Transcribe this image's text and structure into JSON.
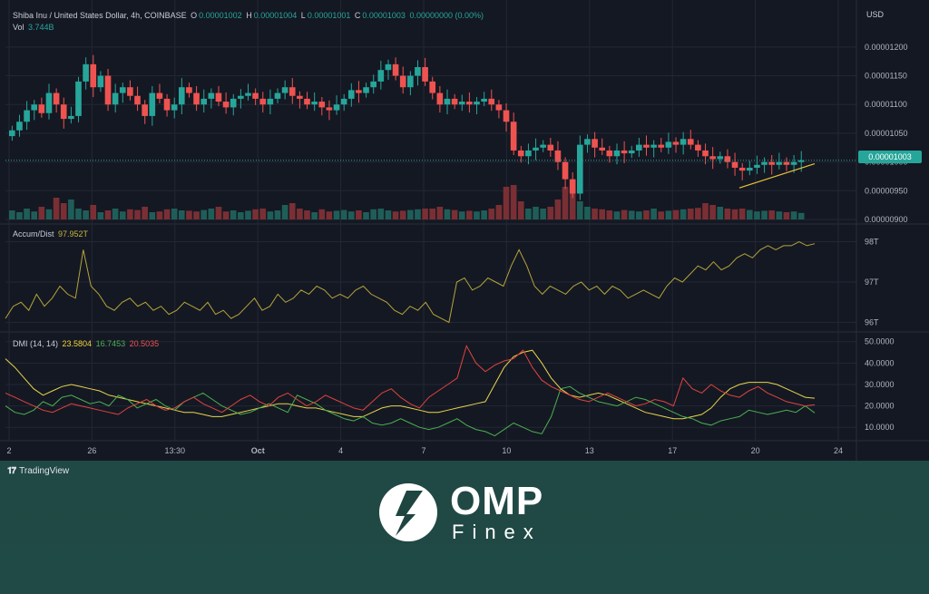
{
  "header": {
    "symbol": "Shiba Inu / United States Dollar, 4h, COINBASE",
    "o_label": "O",
    "o_value": "0.00001002",
    "h_label": "H",
    "h_value": "0.00001004",
    "l_label": "L",
    "l_value": "0.00001001",
    "c_label": "C",
    "c_value": "0.00001003",
    "change": "0.00000000 (0.00%)",
    "vol_label": "Vol",
    "vol_value": "3.744B",
    "currency": "USD",
    "last_price": "0.00001003"
  },
  "indicators": {
    "ad_label": "Accum/Dist",
    "ad_value": "97.952T",
    "dmi_label": "DMI (14, 14)",
    "dmi_adx": "23.5804",
    "dmi_plus": "16.7453",
    "dmi_minus": "20.5035"
  },
  "colors": {
    "up": "#26a69a",
    "down": "#ef5350",
    "ad_line": "#b5a43a",
    "adx": "#e8d54a",
    "plus_di": "#4caf50",
    "minus_di": "#e0443e",
    "trendline": "#e8c33a",
    "background": "#141823",
    "grid": "#232734"
  },
  "branding": {
    "tradingview": "TradingView",
    "logo_title": "OMP",
    "logo_sub": "Finex",
    "logo_icon": "omp-finex-logo-icon",
    "tv_icon": "tradingview-logo-icon"
  },
  "chart_data": [
    {
      "type": "candlestick",
      "title": "Shiba Inu / United States Dollar, 4h, COINBASE",
      "ylabel": "USD",
      "ylim": [
        9e-06,
        1.225e-05
      ],
      "yticks": [
        "0.00001200",
        "0.00001150",
        "0.00001100",
        "0.00001050",
        "0.00001000",
        "0.00000950",
        "0.00000900"
      ],
      "xticks": [
        "2",
        "26",
        "13:30",
        "Oct",
        "4",
        "7",
        "10",
        "13",
        "17",
        "20",
        "24"
      ],
      "close_series": [
        1.055,
        1.07,
        1.09,
        1.1,
        1.085,
        1.12,
        1.1,
        1.075,
        1.08,
        1.14,
        1.17,
        1.13,
        1.15,
        1.1,
        1.12,
        1.13,
        1.115,
        1.1,
        1.08,
        1.12,
        1.11,
        1.09,
        1.1,
        1.13,
        1.12,
        1.1,
        1.11,
        1.12,
        1.105,
        1.095,
        1.11,
        1.115,
        1.12,
        1.11,
        1.1,
        1.11,
        1.12,
        1.13,
        1.115,
        1.11,
        1.1,
        1.105,
        1.095,
        1.09,
        1.1,
        1.11,
        1.125,
        1.12,
        1.13,
        1.14,
        1.16,
        1.17,
        1.15,
        1.13,
        1.15,
        1.165,
        1.14,
        1.12,
        1.1,
        1.11,
        1.1,
        1.105,
        1.1,
        1.105,
        1.11,
        1.1,
        1.09,
        1.07,
        1.02,
        1.01,
        1.02,
        1.025,
        1.03,
        1.02,
        1.0,
        0.97,
        0.945,
        1.03,
        1.04,
        1.025,
        1.02,
        1.01,
        1.02,
        1.015,
        1.02,
        1.03,
        1.025,
        1.03,
        1.025,
        1.035,
        1.03,
        1.04,
        1.03,
        1.02,
        1.01,
        1.005,
        1.01,
        1.0,
        0.99,
        0.985,
        0.99,
        0.995,
        1.0,
        0.995,
        1.0,
        0.995,
        1.0,
        1.003
      ],
      "volume_series": [
        0.25,
        0.2,
        0.3,
        0.22,
        0.35,
        0.28,
        0.6,
        0.45,
        0.55,
        0.3,
        0.25,
        0.4,
        0.2,
        0.25,
        0.3,
        0.22,
        0.28,
        0.26,
        0.35,
        0.2,
        0.22,
        0.28,
        0.3,
        0.25,
        0.24,
        0.22,
        0.26,
        0.3,
        0.35,
        0.22,
        0.25,
        0.2,
        0.24,
        0.28,
        0.3,
        0.22,
        0.25,
        0.4,
        0.45,
        0.3,
        0.25,
        0.2,
        0.28,
        0.22,
        0.24,
        0.26,
        0.22,
        0.25,
        0.2,
        0.28,
        0.3,
        0.25,
        0.22,
        0.24,
        0.26,
        0.28,
        0.3,
        0.3,
        0.35,
        0.28,
        0.26,
        0.22,
        0.24,
        0.22,
        0.25,
        0.3,
        0.4,
        0.9,
        0.95,
        0.5,
        0.3,
        0.35,
        0.3,
        0.35,
        0.55,
        0.9,
        0.8,
        0.5,
        0.35,
        0.3,
        0.28,
        0.25,
        0.22,
        0.26,
        0.24,
        0.22,
        0.25,
        0.3,
        0.22,
        0.24,
        0.26,
        0.28,
        0.3,
        0.32,
        0.45,
        0.4,
        0.35,
        0.3,
        0.28,
        0.3,
        0.26,
        0.22,
        0.24,
        0.25,
        0.22,
        0.2,
        0.22,
        0.18
      ]
    },
    {
      "type": "line",
      "title": "Accum/Dist",
      "ylim": [
        95.9,
        98.1
      ],
      "yticks": [
        "98T",
        "97T",
        "96T"
      ],
      "values": [
        96.1,
        96.4,
        96.5,
        96.3,
        96.7,
        96.4,
        96.6,
        96.9,
        96.7,
        96.6,
        97.8,
        96.9,
        96.7,
        96.4,
        96.3,
        96.5,
        96.6,
        96.4,
        96.5,
        96.3,
        96.4,
        96.2,
        96.3,
        96.5,
        96.4,
        96.3,
        96.5,
        96.2,
        96.3,
        96.1,
        96.2,
        96.4,
        96.6,
        96.3,
        96.4,
        96.7,
        96.5,
        96.6,
        96.8,
        96.7,
        96.9,
        96.8,
        96.6,
        96.7,
        96.6,
        96.8,
        96.9,
        96.7,
        96.6,
        96.5,
        96.3,
        96.2,
        96.4,
        96.3,
        96.5,
        96.2,
        96.1,
        96.0,
        97.0,
        97.1,
        96.8,
        96.9,
        97.1,
        97.0,
        96.9,
        97.4,
        97.8,
        97.4,
        96.9,
        96.7,
        96.9,
        96.8,
        96.7,
        96.9,
        97.0,
        96.8,
        96.9,
        96.7,
        96.9,
        96.8,
        96.6,
        96.7,
        96.8,
        96.7,
        96.6,
        96.9,
        97.1,
        97.0,
        97.2,
        97.4,
        97.3,
        97.5,
        97.3,
        97.4,
        97.6,
        97.7,
        97.6,
        97.8,
        97.9,
        97.8,
        97.9,
        97.9,
        98.0,
        97.9,
        97.95
      ],
      "ticks_x": [
        "2",
        "26",
        "13:30",
        "Oct",
        "4",
        "7",
        "10",
        "13",
        "17",
        "20",
        "24"
      ]
    },
    {
      "type": "line",
      "title": "DMI (14, 14)",
      "ylim": [
        5,
        52
      ],
      "yticks": [
        "50.0000",
        "40.0000",
        "30.0000",
        "20.0000",
        "10.0000"
      ],
      "series": [
        {
          "name": "ADX",
          "values": [
            42,
            38,
            33,
            28,
            25,
            27,
            29,
            30,
            29,
            28,
            27,
            25,
            24,
            23,
            22,
            21,
            20,
            19,
            18,
            17,
            17,
            16,
            15,
            15,
            16,
            17,
            18,
            19,
            20,
            21,
            21,
            20,
            19,
            19,
            18,
            17,
            16,
            15,
            15,
            17,
            19,
            20,
            20,
            19,
            18,
            17,
            17,
            18,
            19,
            20,
            21,
            22,
            30,
            38,
            43,
            45,
            46,
            40,
            33,
            28,
            25,
            24,
            25,
            26,
            25,
            23,
            21,
            19,
            17,
            16,
            15,
            14,
            14,
            15,
            16,
            19,
            24,
            28,
            30,
            31,
            31,
            31,
            30,
            28,
            26,
            24,
            23.58
          ]
        },
        {
          "name": "+DI",
          "values": [
            20,
            17,
            16,
            18,
            22,
            20,
            24,
            25,
            23,
            21,
            22,
            20,
            25,
            23,
            19,
            21,
            23,
            20,
            18,
            22,
            24,
            26,
            23,
            20,
            18,
            16,
            17,
            19,
            21,
            19,
            17,
            25,
            23,
            21,
            18,
            16,
            14,
            13,
            15,
            12,
            11,
            12,
            14,
            12,
            10,
            9,
            10,
            12,
            14,
            11,
            9,
            8,
            6,
            9,
            12,
            10,
            8,
            7,
            15,
            28,
            29,
            26,
            24,
            22,
            21,
            20,
            22,
            24,
            23,
            21,
            19,
            17,
            15,
            14,
            12,
            11,
            13,
            14,
            15,
            18,
            17,
            16,
            17,
            18,
            17,
            20,
            16.75
          ]
        },
        {
          "name": "-DI",
          "values": [
            26,
            24,
            22,
            20,
            18,
            17,
            19,
            21,
            20,
            19,
            18,
            17,
            16,
            19,
            21,
            23,
            20,
            18,
            19,
            22,
            24,
            21,
            19,
            17,
            20,
            23,
            25,
            22,
            20,
            24,
            26,
            23,
            20,
            22,
            25,
            23,
            21,
            19,
            18,
            22,
            26,
            28,
            24,
            21,
            19,
            24,
            27,
            30,
            33,
            48,
            40,
            36,
            39,
            41,
            42,
            46,
            38,
            32,
            29,
            27,
            25,
            23,
            22,
            24,
            26,
            24,
            22,
            20,
            21,
            23,
            22,
            20,
            33,
            28,
            26,
            30,
            27,
            25,
            24,
            27,
            29,
            26,
            24,
            22,
            21,
            20,
            20.5
          ]
        }
      ],
      "ticks_x": [
        "2",
        "26",
        "13:30",
        "Oct",
        "4",
        "7",
        "10",
        "13",
        "17",
        "20",
        "24"
      ]
    }
  ]
}
